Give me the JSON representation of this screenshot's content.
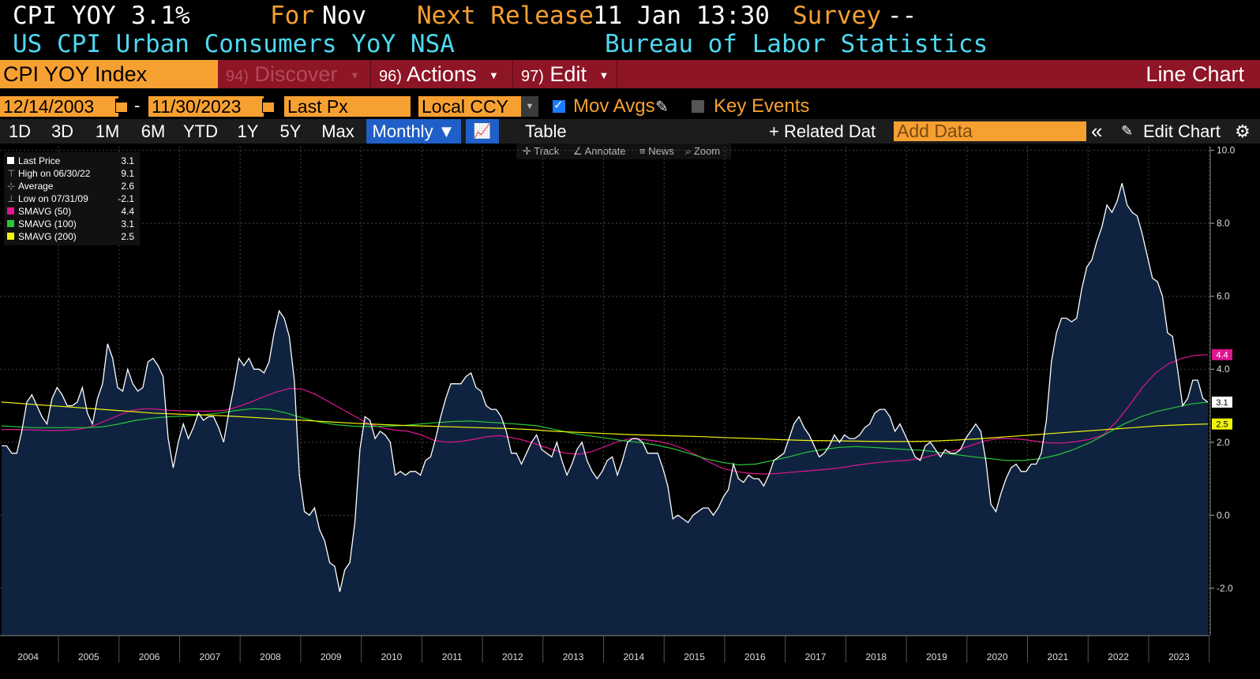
{
  "header": {
    "ticker_short": "CPI YOY",
    "last_value": "3.1%",
    "for_label": "For",
    "for_value": "Nov",
    "next_release_label": "Next Release",
    "next_release_value": "11 Jan 13:30",
    "survey_label": "Survey",
    "survey_value": "--",
    "description": "US CPI Urban Consumers YoY NSA",
    "source": "Bureau of Labor Statistics"
  },
  "toolbar": {
    "security": "CPI YOY Index",
    "discover_num": "94)",
    "discover_label": "Discover",
    "actions_num": "96)",
    "actions_label": "Actions",
    "edit_num": "97)",
    "edit_label": "Edit",
    "chart_type": "Line Chart"
  },
  "range": {
    "start_date": "12/14/2003",
    "separator": "-",
    "end_date": "11/30/2023",
    "price_field": "Last Px",
    "currency": "Local CCY",
    "mov_avgs_label": "Mov Avgs",
    "key_events_label": "Key Events"
  },
  "periods": {
    "items": [
      "1D",
      "3D",
      "1M",
      "6M",
      "YTD",
      "1Y",
      "5Y",
      "Max"
    ],
    "frequency": "Monthly ▼",
    "table_label": "Table",
    "related_label": "+ Related Dat",
    "add_data_placeholder": "Add Data",
    "collapse": "«",
    "edit_chart_label": "Edit Chart"
  },
  "chart_tools": [
    "Track",
    "Annotate",
    "News",
    "Zoom"
  ],
  "legend": [
    {
      "label": "Last Price",
      "value": "3.1",
      "color": "#ffffff"
    },
    {
      "label": "High on 06/30/22",
      "value": "9.1",
      "color": "#aaaaaa"
    },
    {
      "label": "Average",
      "value": "2.6",
      "color": "#aaaaaa"
    },
    {
      "label": "Low on 07/31/09",
      "value": "-2.1",
      "color": "#aaaaaa"
    },
    {
      "label": "SMAVG (50)",
      "value": "4.4",
      "color": "#e0158f"
    },
    {
      "label": "SMAVG (100)",
      "value": "3.1",
      "color": "#28c838"
    },
    {
      "label": "SMAVG (200)",
      "value": "2.5",
      "color": "#f2f20c"
    }
  ],
  "chart_data": {
    "type": "line",
    "ylim": [
      -3.3,
      10.1
    ],
    "yticks": [
      "10.0",
      "8.0",
      "6.0",
      "4.0",
      "2.0",
      "0.0",
      "-2.0"
    ],
    "ytick_values": [
      10,
      8,
      6,
      4,
      2,
      0,
      -2
    ],
    "xticks": [
      "2004",
      "2005",
      "2006",
      "2007",
      "2008",
      "2009",
      "2010",
      "2011",
      "2012",
      "2013",
      "2014",
      "2015",
      "2016",
      "2017",
      "2018",
      "2019",
      "2020",
      "2021",
      "2022",
      "2023"
    ],
    "x_start": "2003-12",
    "x_end": "2023-11",
    "end_labels": [
      {
        "value": "4.4",
        "color": "#e0158f"
      },
      {
        "value": "3.1",
        "color": "#ffffff"
      },
      {
        "value": "2.5",
        "color": "#f2f20c"
      }
    ],
    "series": [
      {
        "name": "Last Price",
        "color": "#ffffff",
        "fill": "#0f2340",
        "values": [
          1.9,
          1.9,
          1.7,
          1.7,
          2.3,
          3.1,
          3.3,
          3.0,
          2.7,
          2.5,
          3.2,
          3.5,
          3.3,
          3.0,
          3.0,
          3.1,
          3.5,
          2.8,
          2.5,
          3.2,
          3.6,
          4.7,
          4.3,
          3.5,
          3.4,
          4.0,
          3.6,
          3.4,
          3.5,
          4.2,
          4.3,
          4.1,
          3.8,
          2.1,
          1.3,
          2.0,
          2.5,
          2.1,
          2.4,
          2.8,
          2.6,
          2.7,
          2.7,
          2.4,
          2.0,
          2.8,
          3.5,
          4.3,
          4.1,
          4.3,
          4.0,
          4.0,
          3.9,
          4.2,
          5.0,
          5.6,
          5.4,
          4.9,
          3.7,
          1.1,
          0.1,
          0.0,
          0.2,
          -0.4,
          -0.7,
          -1.3,
          -1.4,
          -2.1,
          -1.5,
          -1.3,
          -0.2,
          1.8,
          2.7,
          2.6,
          2.1,
          2.3,
          2.2,
          2.0,
          1.1,
          1.2,
          1.1,
          1.2,
          1.2,
          1.1,
          1.5,
          1.6,
          2.1,
          2.7,
          3.2,
          3.6,
          3.6,
          3.6,
          3.8,
          3.9,
          3.5,
          3.4,
          3.0,
          2.9,
          2.9,
          2.7,
          2.3,
          1.7,
          1.7,
          1.4,
          1.7,
          2.0,
          2.2,
          1.8,
          1.7,
          1.6,
          2.0,
          1.5,
          1.1,
          1.4,
          1.8,
          2.0,
          1.5,
          1.2,
          1.0,
          1.2,
          1.5,
          1.6,
          1.1,
          1.5,
          2.0,
          2.1,
          2.1,
          2.0,
          1.7,
          1.7,
          1.7,
          1.3,
          0.8,
          -0.1,
          0.0,
          -0.1,
          -0.2,
          0.0,
          0.1,
          0.2,
          0.2,
          0.0,
          0.2,
          0.5,
          0.7,
          1.4,
          1.0,
          0.9,
          1.1,
          1.0,
          1.0,
          0.8,
          1.1,
          1.5,
          1.6,
          1.7,
          2.1,
          2.5,
          2.7,
          2.4,
          2.2,
          1.9,
          1.6,
          1.7,
          1.9,
          2.2,
          2.0,
          2.2,
          2.1,
          2.1,
          2.2,
          2.4,
          2.5,
          2.8,
          2.9,
          2.9,
          2.7,
          2.3,
          2.5,
          2.2,
          1.9,
          1.6,
          1.5,
          1.9,
          2.0,
          1.8,
          1.6,
          1.8,
          1.7,
          1.7,
          1.8,
          2.1,
          2.3,
          2.5,
          2.3,
          1.5,
          0.3,
          0.1,
          0.6,
          1.0,
          1.3,
          1.4,
          1.2,
          1.2,
          1.4,
          1.4,
          1.7,
          2.6,
          4.2,
          5.0,
          5.4,
          5.4,
          5.3,
          5.4,
          6.2,
          6.8,
          7.0,
          7.5,
          7.9,
          8.5,
          8.3,
          8.6,
          9.1,
          8.5,
          8.3,
          8.2,
          7.7,
          7.1,
          6.5,
          6.4,
          6.0,
          5.0,
          4.9,
          4.0,
          3.0,
          3.2,
          3.7,
          3.7,
          3.2,
          3.1
        ]
      },
      {
        "name": "SMAVG (50)",
        "color": "#e0158f",
        "values": [
          2.35,
          2.35,
          2.34,
          2.33,
          2.32,
          2.33,
          2.36,
          2.45,
          2.6,
          2.75,
          2.88,
          2.92,
          2.9,
          2.87,
          2.86,
          2.85,
          2.85,
          2.87,
          2.97,
          3.1,
          3.25,
          3.38,
          3.48,
          3.45,
          3.3,
          3.1,
          2.9,
          2.7,
          2.5,
          2.4,
          2.33,
          2.3,
          2.2,
          2.05,
          2.0,
          2.02,
          2.08,
          2.15,
          2.18,
          2.12,
          2.04,
          1.92,
          1.8,
          1.7,
          1.67,
          1.74,
          1.88,
          2.02,
          2.1,
          2.07,
          2.03,
          1.95,
          1.82,
          1.65,
          1.45,
          1.28,
          1.2,
          1.15,
          1.13,
          1.14,
          1.17,
          1.2,
          1.23,
          1.26,
          1.3,
          1.36,
          1.41,
          1.45,
          1.48,
          1.5,
          1.55,
          1.64,
          1.72,
          1.8,
          1.92,
          2.04,
          2.1,
          2.1,
          2.07,
          2.02,
          1.98,
          1.98,
          2.02,
          2.08,
          2.2,
          2.55,
          3.0,
          3.5,
          3.9,
          4.15,
          4.3,
          4.38,
          4.4
        ]
      },
      {
        "name": "SMAVG (100)",
        "color": "#28c838",
        "values": [
          2.45,
          2.42,
          2.4,
          2.4,
          2.4,
          2.4,
          2.42,
          2.5,
          2.6,
          2.66,
          2.7,
          2.72,
          2.75,
          2.8,
          2.87,
          2.92,
          2.9,
          2.8,
          2.66,
          2.55,
          2.48,
          2.44,
          2.43,
          2.44,
          2.46,
          2.5,
          2.54,
          2.57,
          2.58,
          2.55,
          2.52,
          2.49,
          2.45,
          2.35,
          2.25,
          2.18,
          2.12,
          2.05,
          2.0,
          1.93,
          1.83,
          1.7,
          1.55,
          1.45,
          1.38,
          1.4,
          1.5,
          1.6,
          1.72,
          1.8,
          1.86,
          1.88,
          1.86,
          1.83,
          1.8,
          1.78,
          1.72,
          1.66,
          1.6,
          1.55,
          1.5,
          1.5,
          1.55,
          1.65,
          1.8,
          2.0,
          2.25,
          2.5,
          2.7,
          2.85,
          2.95,
          3.05,
          3.1
        ]
      },
      {
        "name": "SMAVG (200)",
        "color": "#f2f20c",
        "values": [
          3.1,
          3.05,
          3.0,
          2.95,
          2.9,
          2.85,
          2.8,
          2.77,
          2.75,
          2.72,
          2.68,
          2.64,
          2.6,
          2.56,
          2.52,
          2.49,
          2.46,
          2.44,
          2.42,
          2.4,
          2.38,
          2.35,
          2.3,
          2.27,
          2.24,
          2.21,
          2.19,
          2.17,
          2.15,
          2.12,
          2.1,
          2.07,
          2.05,
          2.04,
          2.03,
          2.02,
          2.02,
          2.03,
          2.06,
          2.1,
          2.15,
          2.2,
          2.25,
          2.3,
          2.35,
          2.4,
          2.45,
          2.48,
          2.5
        ]
      }
    ]
  }
}
